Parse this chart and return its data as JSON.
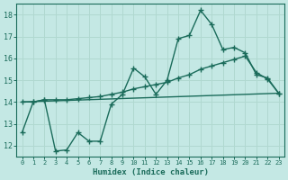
{
  "background_color": "#c4e8e4",
  "grid_color": "#b0d8d0",
  "line_color": "#1a6b5a",
  "xlabel": "Humidex (Indice chaleur)",
  "ylim": [
    11.5,
    18.5
  ],
  "xlim": [
    -0.5,
    23.5
  ],
  "yticks": [
    12,
    13,
    14,
    15,
    16,
    17,
    18
  ],
  "xticks": [
    0,
    1,
    2,
    3,
    4,
    5,
    6,
    7,
    8,
    9,
    10,
    11,
    12,
    13,
    14,
    15,
    16,
    17,
    18,
    19,
    20,
    21,
    22,
    23
  ],
  "curve1_x": [
    0,
    1,
    2,
    3,
    4,
    5,
    6,
    7,
    8,
    9,
    10,
    11,
    12,
    13,
    14,
    15,
    16,
    17,
    18,
    19,
    20,
    21,
    22,
    23
  ],
  "curve1_y": [
    12.6,
    14.0,
    14.1,
    11.75,
    11.8,
    12.6,
    12.2,
    12.2,
    13.9,
    14.35,
    15.55,
    15.15,
    14.35,
    15.0,
    16.9,
    17.05,
    18.2,
    17.55,
    16.4,
    16.5,
    16.25,
    15.25,
    15.1,
    14.4
  ],
  "curve2_x": [
    0,
    1,
    2,
    3,
    4,
    5,
    6,
    7,
    8,
    9,
    10,
    11,
    12,
    13,
    14,
    15,
    16,
    17,
    18,
    19,
    20,
    21,
    22,
    23
  ],
  "curve2_y": [
    14.0,
    14.0,
    14.1,
    14.1,
    14.1,
    14.15,
    14.2,
    14.25,
    14.35,
    14.45,
    14.6,
    14.7,
    14.8,
    14.9,
    15.1,
    15.25,
    15.5,
    15.65,
    15.8,
    15.95,
    16.1,
    15.35,
    15.05,
    14.4
  ],
  "curve3_x": [
    0,
    23
  ],
  "curve3_y": [
    14.0,
    14.4
  ]
}
